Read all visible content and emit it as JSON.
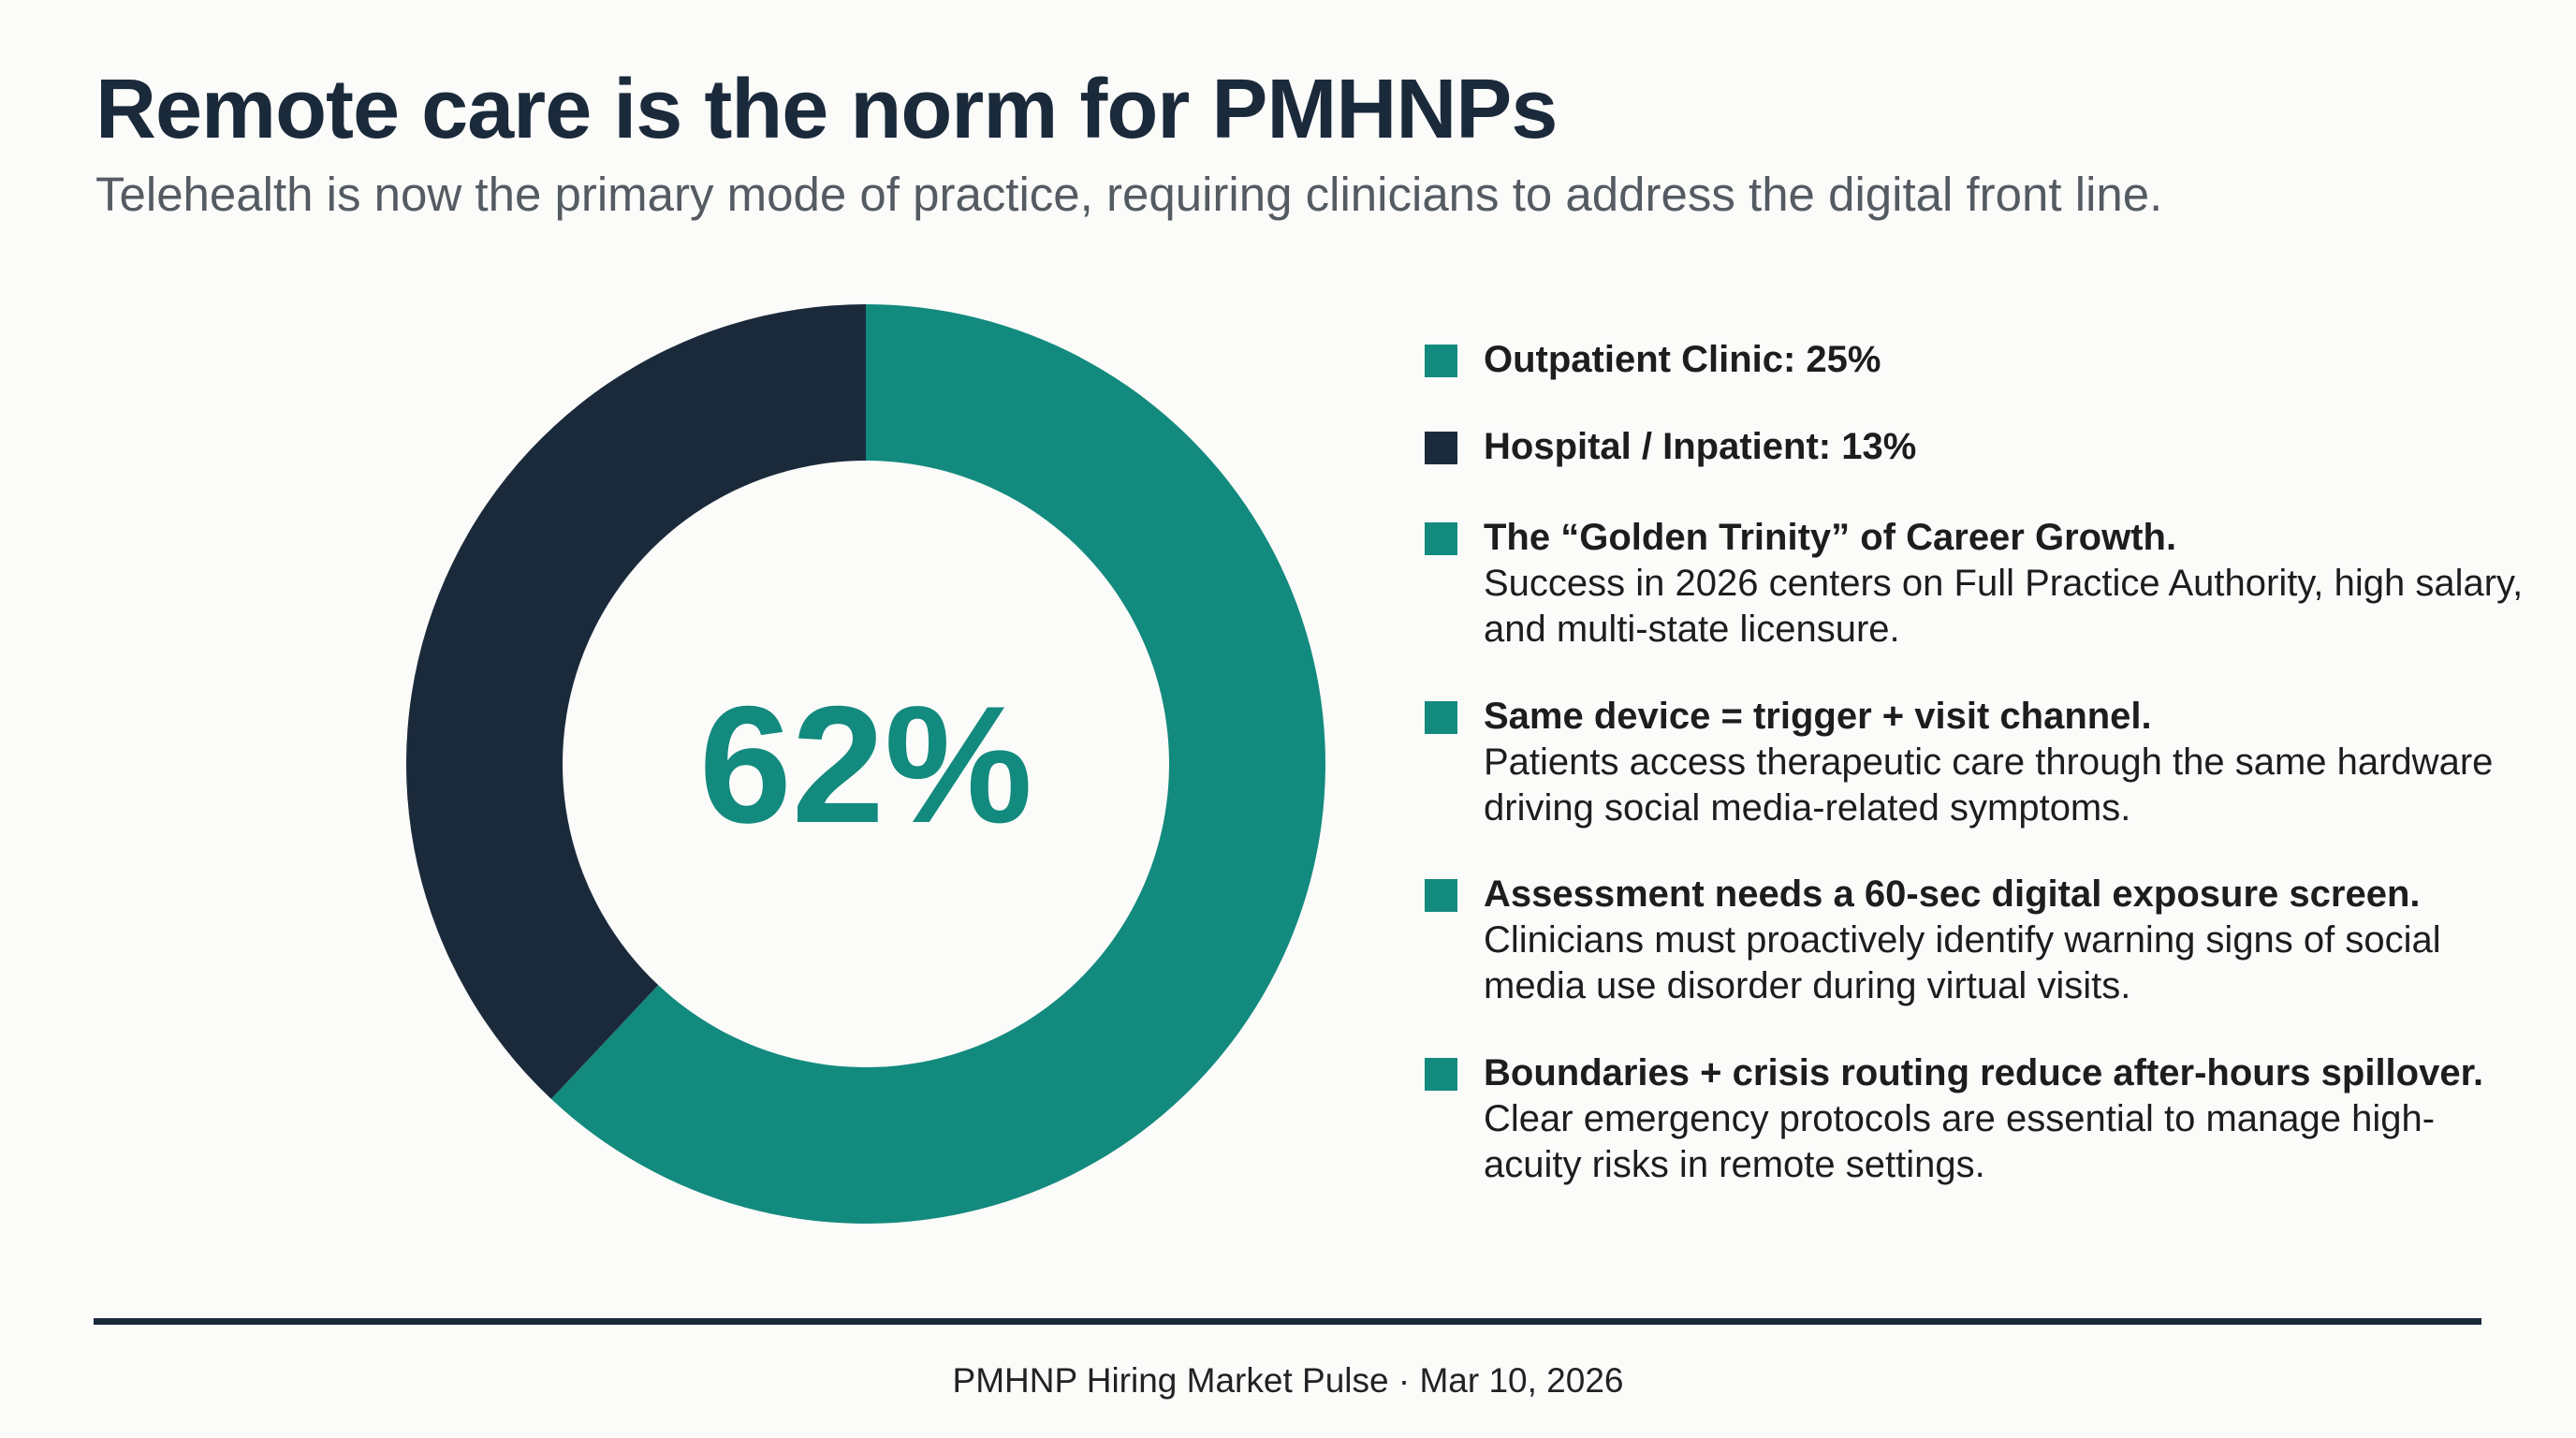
{
  "chart_data": {
    "type": "donut",
    "title": "Remote care is the norm for PMHNPs",
    "subtitle": "Telehealth is now the primary mode of practice, requiring clinicians to address the digital front line.",
    "categories": [
      null,
      null
    ],
    "values": [
      62,
      38
    ],
    "value_labels": [
      "62%",
      null
    ],
    "colors": [
      "#138a7e",
      "#1b2a3b"
    ],
    "notes": [
      {
        "heading": "Outpatient Clinic: 25%",
        "color": "#138a7e"
      },
      {
        "heading": "Hospital / Inpatient: 13%",
        "color": "#1b2a3b"
      },
      {
        "heading": "The “Golden Trinity” of Career Growth.",
        "body": "Success in 2026 centers on Full Practice Authority, high salary, and multi-state licensure.",
        "color": "#138a7e"
      },
      {
        "heading": "Same device = trigger + visit channel.",
        "body": "Patients access therapeutic care through the same hardware driving social media-related symptoms.",
        "color": "#138a7e"
      },
      {
        "heading": "Assessment needs a 60-sec digital exposure screen.",
        "body": "Clinicians must proactively identify warning signs of social media use disorder during virtual visits.",
        "color": "#138a7e"
      },
      {
        "heading": "Boundaries + crisis routing reduce after-hours spillover.",
        "body": "Clear emergency protocols are essential to manage high-acuity risks in remote settings.",
        "color": "#138a7e"
      }
    ],
    "footer": "PMHNP Hiring Market Pulse · Mar 10, 2026"
  }
}
